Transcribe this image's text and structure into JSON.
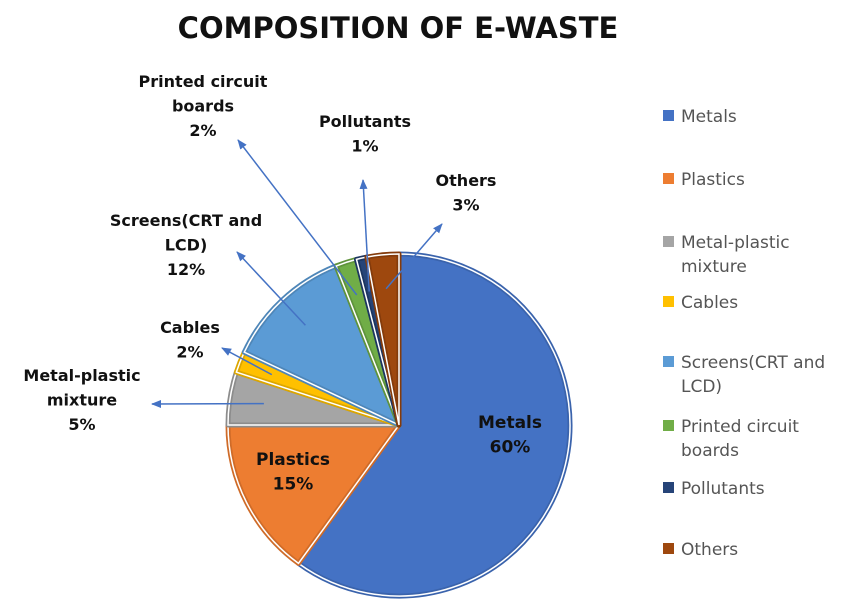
{
  "chart_data": {
    "type": "pie",
    "title": "COMPOSITION OF E-WASTE",
    "slices": [
      {
        "name": "Metals",
        "value": 60,
        "label": "60%",
        "color": "#4472C4",
        "edge": "#3A63AC"
      },
      {
        "name": "Plastics",
        "value": 15,
        "label": "15%",
        "color": "#ED7D31",
        "edge": "#CF6B28"
      },
      {
        "name": "Metal-plastic mixture",
        "value": 5,
        "label": "5%",
        "color": "#A5A5A5",
        "edge": "#8C8C8C"
      },
      {
        "name": "Cables",
        "value": 2,
        "label": "2%",
        "color": "#FFC000",
        "edge": "#DCA600"
      },
      {
        "name": "Screens(CRT and LCD)",
        "value": 12,
        "label": "12%",
        "color": "#5B9BD5",
        "edge": "#4E86B8"
      },
      {
        "name": "Printed circuit boards",
        "value": 2,
        "label": "2%",
        "color": "#70AD47",
        "edge": "#5F933C"
      },
      {
        "name": "Pollutants",
        "value": 1,
        "label": "1%",
        "color": "#264478",
        "edge": "#1C3560"
      },
      {
        "name": "Others",
        "value": 3,
        "label": "3%",
        "color": "#9E480E",
        "edge": "#843B0B"
      }
    ],
    "data_labels": [
      {
        "lines": [
          "Metals",
          "60%"
        ]
      },
      {
        "lines": [
          "Plastics",
          "15%"
        ]
      },
      {
        "lines": [
          "Metal-plastic",
          "mixture",
          "5%"
        ]
      },
      {
        "lines": [
          "Cables",
          "2%"
        ]
      },
      {
        "lines": [
          "Screens(CRT and",
          "LCD)",
          "12%"
        ]
      },
      {
        "lines": [
          "Printed circuit",
          "boards",
          "2%"
        ]
      },
      {
        "lines": [
          "Pollutants",
          "1%"
        ]
      },
      {
        "lines": [
          "Others",
          "3%"
        ]
      }
    ],
    "legend": {
      "position": "right",
      "entries": [
        {
          "lines": [
            "Metals"
          ]
        },
        {
          "lines": [
            "Plastics"
          ]
        },
        {
          "lines": [
            "Metal-plastic",
            "mixture"
          ]
        },
        {
          "lines": [
            "Cables"
          ]
        },
        {
          "lines": [
            "Screens(CRT and",
            "LCD)"
          ]
        },
        {
          "lines": [
            "Printed circuit",
            "boards"
          ]
        },
        {
          "lines": [
            "Pollutants"
          ]
        },
        {
          "lines": [
            "Others"
          ]
        }
      ]
    },
    "arrow_color": "#4472C4"
  }
}
